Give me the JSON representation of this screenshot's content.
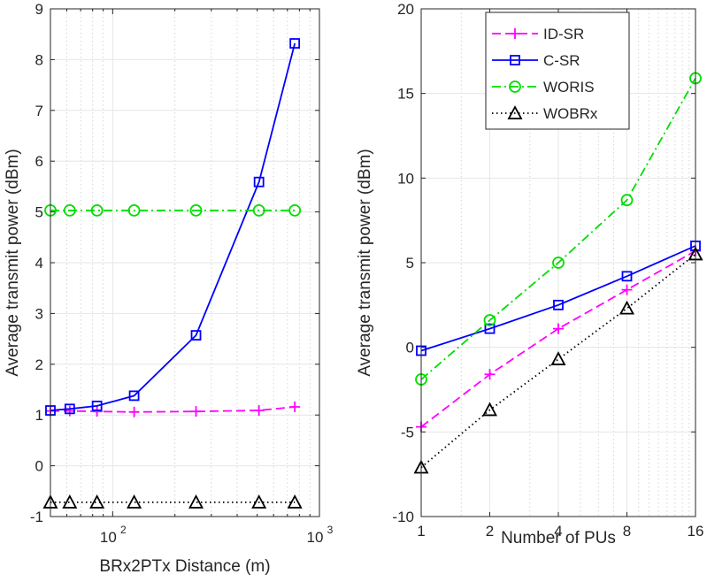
{
  "chart_data": [
    {
      "type": "line",
      "xscale": "log",
      "xlabel": "BRx2PTx Distance (m)",
      "ylabel": "Average transmit power (dBm)",
      "xlim": [
        50,
        1000
      ],
      "ylim": [
        -1,
        9
      ],
      "grid": true,
      "xticks": [
        {
          "value": 100,
          "base": "10",
          "exp": "2"
        },
        {
          "value": 1000,
          "base": "10",
          "exp": "3"
        }
      ],
      "yticks": [
        -1,
        0,
        1,
        2,
        3,
        4,
        5,
        6,
        7,
        8,
        9
      ],
      "ytick_labels": [
        "-1",
        "0",
        "1",
        "2",
        "3",
        "4",
        "5",
        "6",
        "7",
        "8",
        "9"
      ],
      "x": [
        50,
        62,
        84,
        127,
        253,
        510,
        760
      ],
      "series": [
        {
          "name": "ID-SR",
          "color": "#ff00ff",
          "dash": "10 5",
          "marker": "plus",
          "values": [
            1.08,
            1.08,
            1.07,
            1.06,
            1.07,
            1.09,
            1.16
          ]
        },
        {
          "name": "C-SR",
          "color": "#0000ff",
          "dash": "",
          "marker": "square",
          "values": [
            1.09,
            1.12,
            1.18,
            1.38,
            2.57,
            5.59,
            8.32
          ]
        },
        {
          "name": "WORIS",
          "color": "#00dd00",
          "dash": "10 4 2 4",
          "marker": "circle",
          "values": [
            5.03,
            5.03,
            5.03,
            5.03,
            5.03,
            5.03,
            5.03
          ]
        },
        {
          "name": "WOBRx",
          "color": "#000000",
          "dash": "1.5 3.5",
          "marker": "triangle",
          "values": [
            -0.72,
            -0.72,
            -0.72,
            -0.72,
            -0.72,
            -0.72,
            -0.72
          ]
        }
      ]
    },
    {
      "type": "line",
      "xscale": "log2",
      "xlabel": "Number of PUs",
      "ylabel": "Average transmit power (dBm)",
      "xlim": [
        1,
        16
      ],
      "ylim": [
        -10,
        20
      ],
      "grid": true,
      "categories": [
        "1",
        "2",
        "4",
        "8",
        "16"
      ],
      "x": [
        1,
        2,
        4,
        8,
        16
      ],
      "yticks": [
        -10,
        -5,
        0,
        5,
        10,
        15,
        20
      ],
      "ytick_labels": [
        "-10",
        "-5",
        "0",
        "5",
        "10",
        "15",
        "20"
      ],
      "legend": "top-right",
      "series": [
        {
          "name": "ID-SR",
          "color": "#ff00ff",
          "dash": "10 5",
          "marker": "plus",
          "values": [
            -4.7,
            -1.6,
            1.1,
            3.4,
            5.7
          ]
        },
        {
          "name": "C-SR",
          "color": "#0000ff",
          "dash": "",
          "marker": "square",
          "values": [
            -0.2,
            1.1,
            2.5,
            4.2,
            6.0
          ]
        },
        {
          "name": "WORIS",
          "color": "#00dd00",
          "dash": "10 4 2 4",
          "marker": "circle",
          "values": [
            -1.9,
            1.6,
            5.0,
            8.7,
            15.9
          ]
        },
        {
          "name": "WOBRx",
          "color": "#000000",
          "dash": "1.5 3.5",
          "marker": "triangle",
          "values": [
            -7.1,
            -3.7,
            -0.7,
            2.3,
            5.5
          ]
        }
      ]
    }
  ]
}
